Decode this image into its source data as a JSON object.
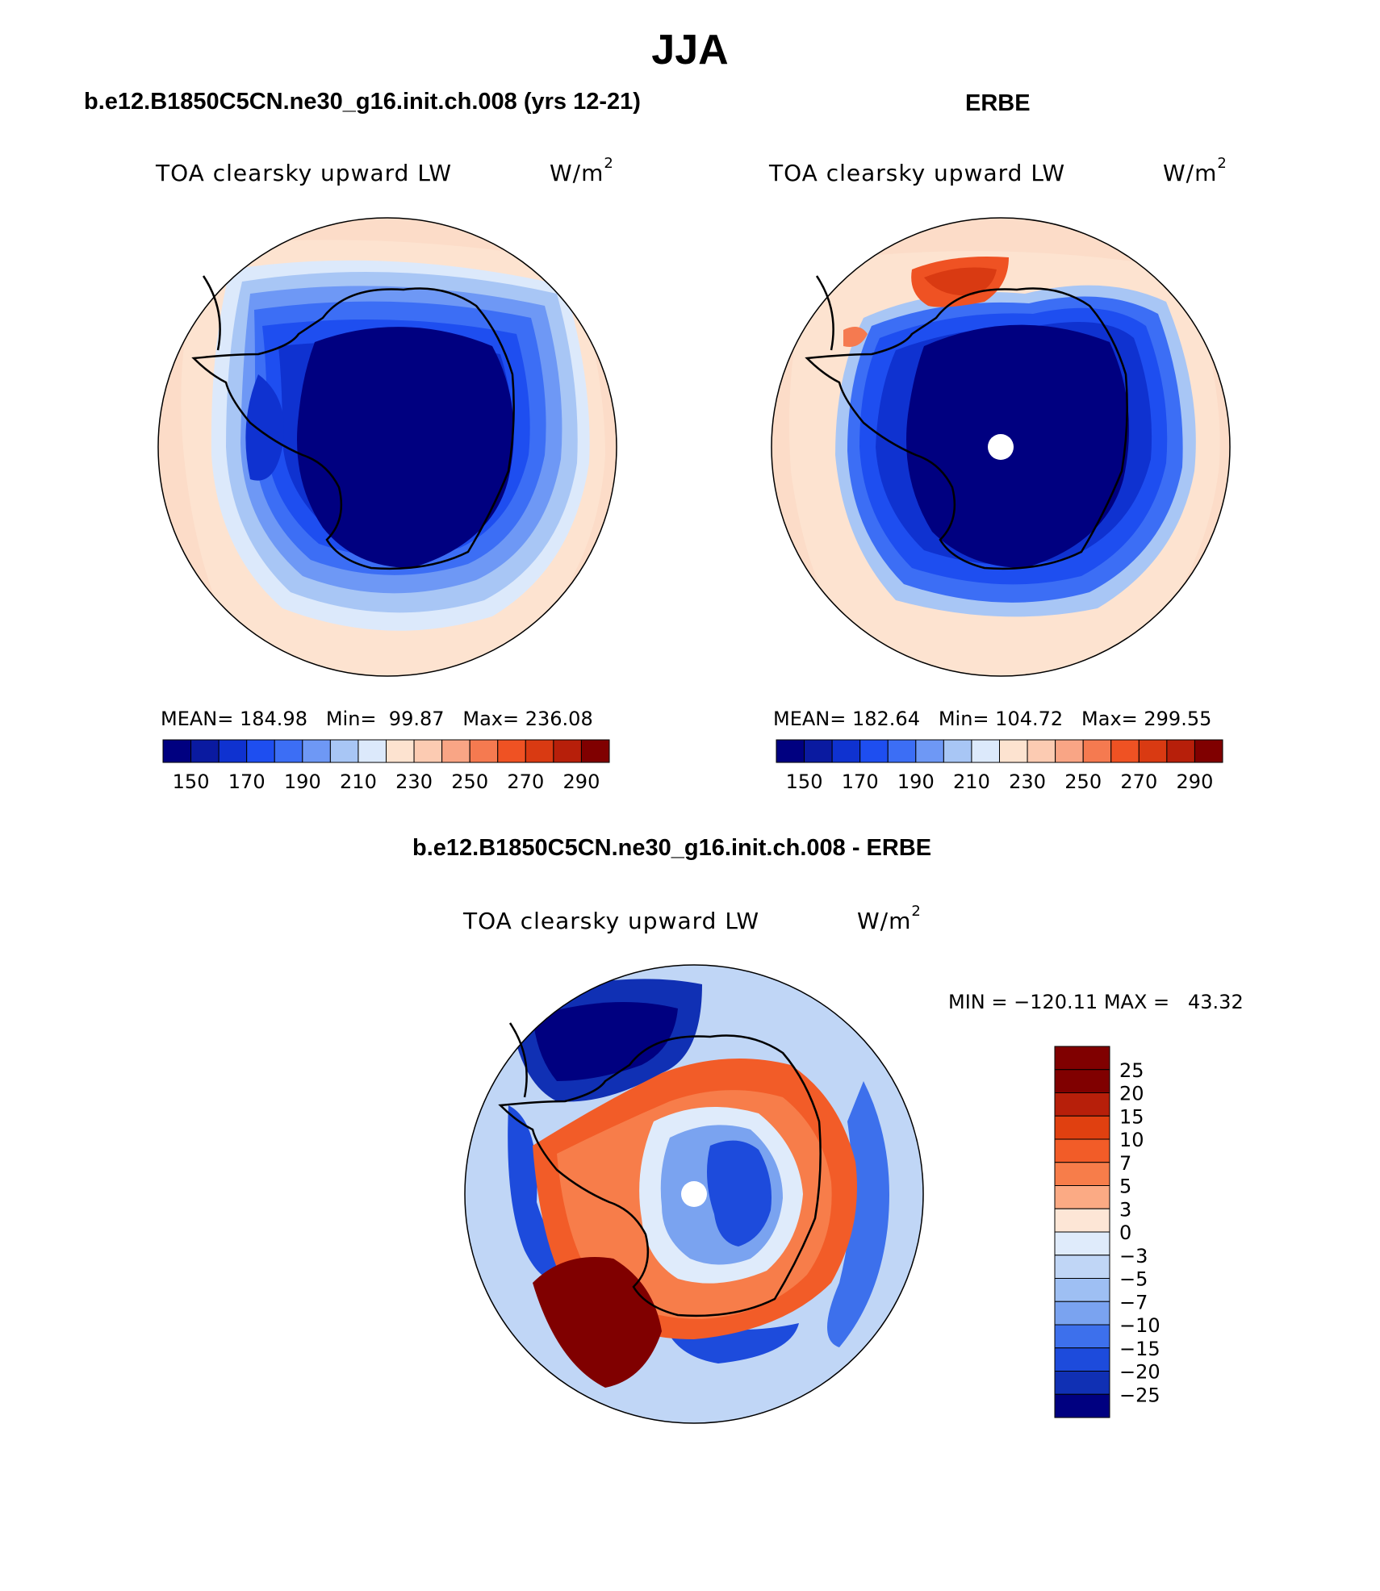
{
  "figure": {
    "season": "JJA"
  },
  "panels": {
    "model": {
      "title": "b.e12.B1850C5CN.ne30_g16.init.ch.008 (yrs 12-21)",
      "variable": "TOA clearsky upward LW",
      "units": "W/m",
      "units_exp": "2",
      "stats_line": "MEAN= 184.98   Min=  99.87   Max= 236.08"
    },
    "obs": {
      "title": "ERBE",
      "variable": "TOA clearsky upward LW",
      "units": "W/m",
      "units_exp": "2",
      "stats_line": "MEAN= 182.64   Min= 104.72   Max= 299.55"
    },
    "diff": {
      "title": "b.e12.B1850C5CN.ne30_g16.init.ch.008 - ERBE",
      "variable": "TOA clearsky upward LW",
      "units": "W/m",
      "units_exp": "2",
      "minmax_line": "MIN = −120.11 MAX =   43.32"
    }
  },
  "colorbars": {
    "field": {
      "colors": [
        "#000080",
        "#0a1aa0",
        "#0f32d0",
        "#1e4ef0",
        "#3c6ef5",
        "#6e98f5",
        "#a8c6f5",
        "#dce9fb",
        "#fde3d0",
        "#fccbb2",
        "#f9a585",
        "#f57a50",
        "#ef5223",
        "#d93a12",
        "#b71f0a",
        "#800000"
      ],
      "tick_labels": [
        "150",
        "170",
        "190",
        "210",
        "230",
        "250",
        "270",
        "290"
      ]
    },
    "diff": {
      "colors": [
        "#800000",
        "#b71f0a",
        "#e04010",
        "#f25c28",
        "#f77d4a",
        "#fbaa84",
        "#fde6d6",
        "#dfebfb",
        "#c0d6f6",
        "#9ebff3",
        "#7aa3f0",
        "#3d70ec",
        "#1d4bdc",
        "#1030b4",
        "#000080"
      ],
      "tick_labels": [
        "25",
        "20",
        "15",
        "10",
        "7",
        "5",
        "3",
        "0",
        "−3",
        "−5",
        "−7",
        "−10",
        "−15",
        "−20",
        "−25"
      ]
    }
  }
}
